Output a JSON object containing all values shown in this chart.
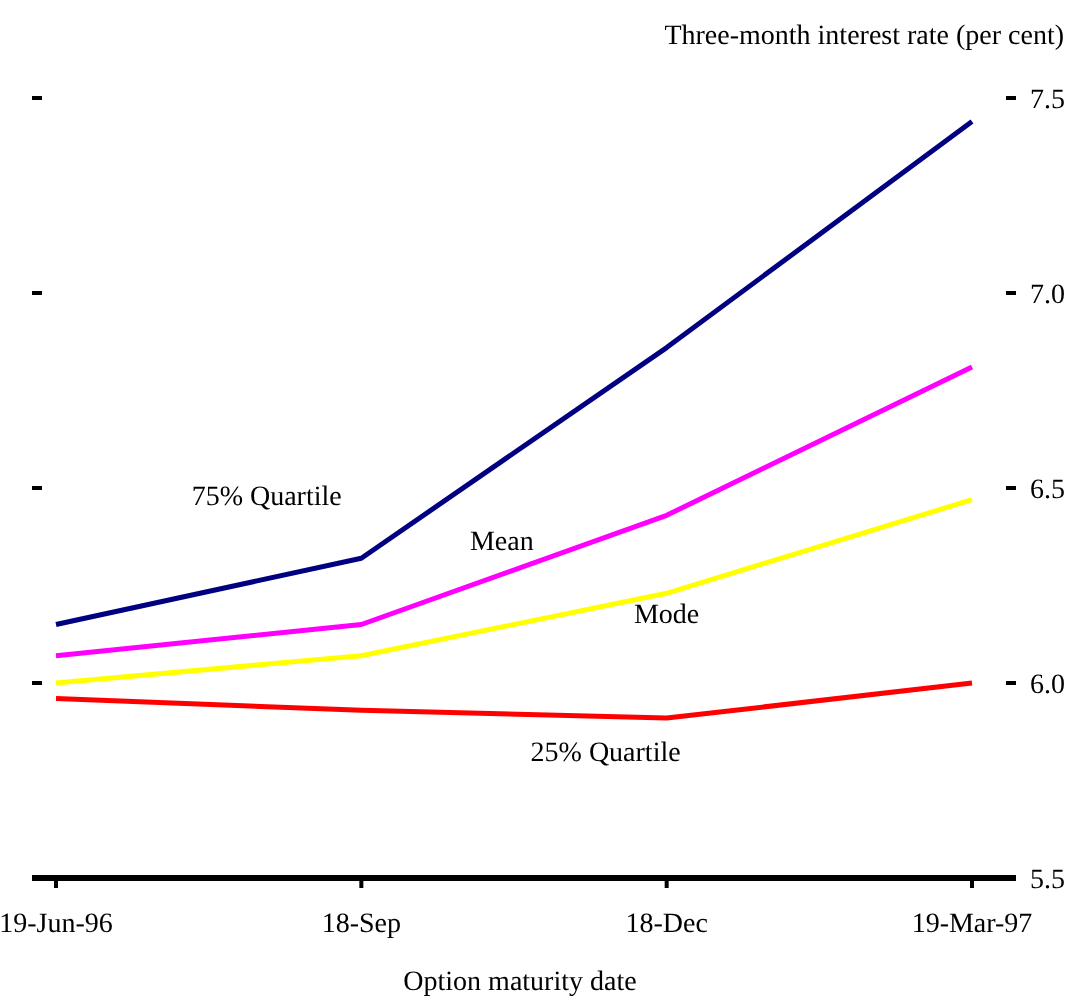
{
  "chart_data": {
    "type": "line",
    "ylabel": "Three-month interest rate (per cent)",
    "xlabel": "Option maturity date",
    "categories": [
      "19-Jun-96",
      "18-Sep",
      "18-Dec",
      "19-Mar-97"
    ],
    "ylim": [
      5.5,
      7.5
    ],
    "yticks": [
      {
        "value": 5.5,
        "label": "5.5"
      },
      {
        "value": 6,
        "label": "6.0"
      },
      {
        "value": 6.5,
        "label": "6.5"
      },
      {
        "value": 7,
        "label": "7.0"
      },
      {
        "value": 7.5,
        "label": "7.5"
      }
    ],
    "grid": false,
    "marker": "none",
    "line_style": "solid",
    "series": [
      {
        "name": "75% Quartile",
        "color": "#000080",
        "values": [
          6.15,
          6.32,
          6.86,
          7.44
        ]
      },
      {
        "name": "Mean",
        "color": "#ff00ff",
        "values": [
          6.07,
          6.15,
          6.43,
          6.81
        ]
      },
      {
        "name": "Mode",
        "color": "#ffff00",
        "values": [
          6.0,
          6.07,
          6.23,
          6.47
        ]
      },
      {
        "name": "25% Quartile",
        "color": "#ff0000",
        "values": [
          5.96,
          5.93,
          5.91,
          6.0
        ]
      }
    ]
  }
}
